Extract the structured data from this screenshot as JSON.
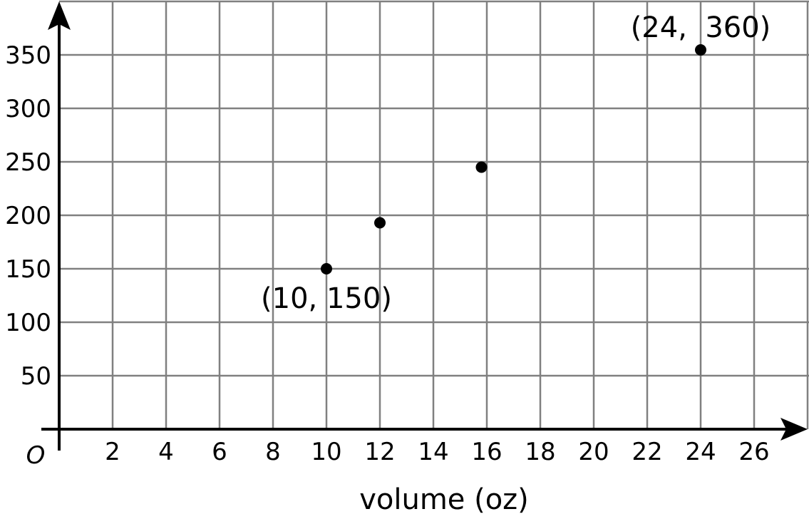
{
  "chart_data": {
    "type": "scatter",
    "title": "",
    "xlabel": "volume (oz)",
    "ylabel": "",
    "origin_label": "O",
    "xlim": [
      0,
      28
    ],
    "ylim": [
      0,
      400
    ],
    "x_ticks": [
      2,
      4,
      6,
      8,
      10,
      12,
      14,
      16,
      18,
      20,
      22,
      24,
      26
    ],
    "y_ticks": [
      50,
      100,
      150,
      200,
      250,
      300,
      350
    ],
    "grid": true,
    "points": [
      {
        "x": 10,
        "y": 150
      },
      {
        "x": 12,
        "y": 193
      },
      {
        "x": 15.8,
        "y": 245
      },
      {
        "x": 24,
        "y": 360
      }
    ],
    "annotations": [
      {
        "text": "(10, 150)",
        "x": 10,
        "y": 150
      },
      {
        "text": "(24,  360)",
        "x": 24,
        "y": 360
      }
    ],
    "colors": {
      "grid": "#808080",
      "axis": "#000000",
      "point": "#000000"
    }
  }
}
